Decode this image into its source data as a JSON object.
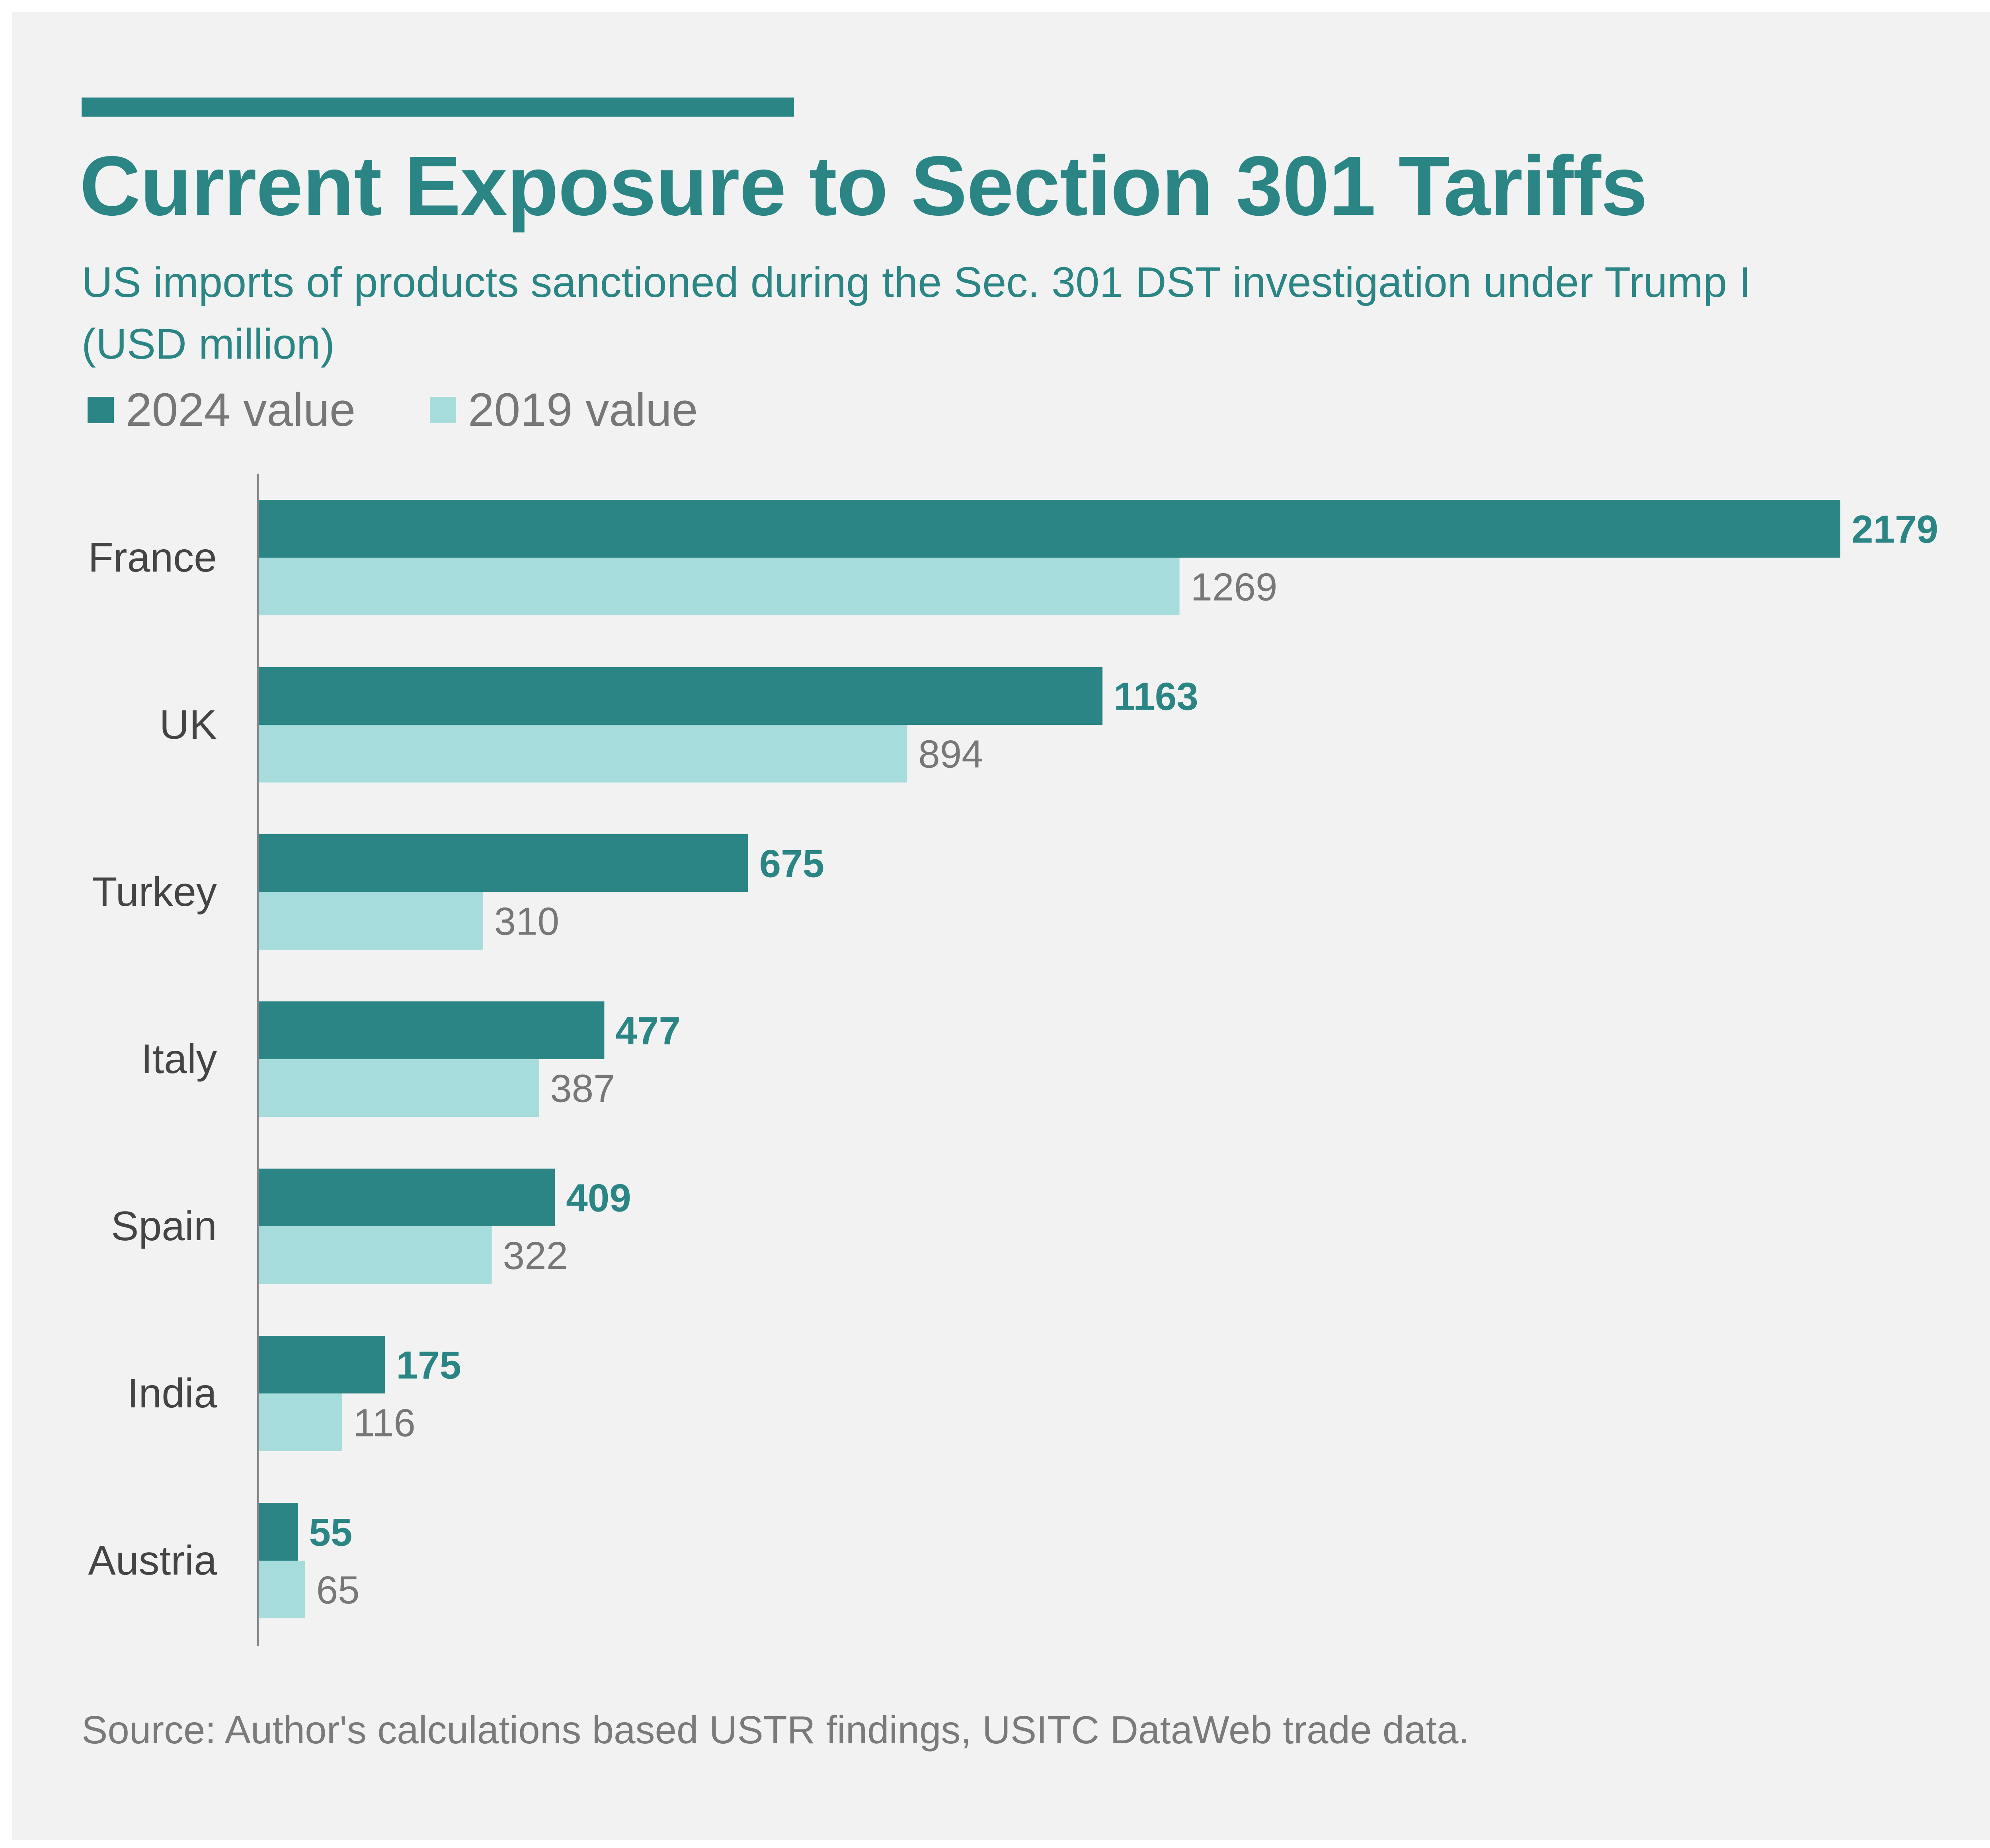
{
  "title": "Current Exposure to Section 301 Tariffs",
  "subtitle_line1": "US imports of products sanctioned during the Sec. 301 DST investigation under Trump I",
  "subtitle_line2": "(USD million)",
  "source": "Source: Author's calculations based USTR findings, USITC DataWeb trade data.",
  "colors": {
    "accent": "#2b8585",
    "series_2024": "#2b8585",
    "series_2019": "#a6dddc",
    "label_2019": "#777777",
    "category_label": "#444444",
    "background": "#f2f2f2"
  },
  "chart_data": {
    "type": "bar",
    "orientation": "horizontal",
    "categories": [
      "France",
      "UK",
      "Turkey",
      "Italy",
      "Spain",
      "India",
      "Austria"
    ],
    "series": [
      {
        "name": "2024 value",
        "values": [
          2179,
          1163,
          675,
          477,
          409,
          175,
          55
        ]
      },
      {
        "name": "2019 value",
        "values": [
          1269,
          894,
          310,
          387,
          322,
          116,
          65
        ]
      }
    ],
    "xlim": [
      0,
      2179
    ],
    "grid": false,
    "legend_position": "top-left",
    "data_labels": true
  }
}
